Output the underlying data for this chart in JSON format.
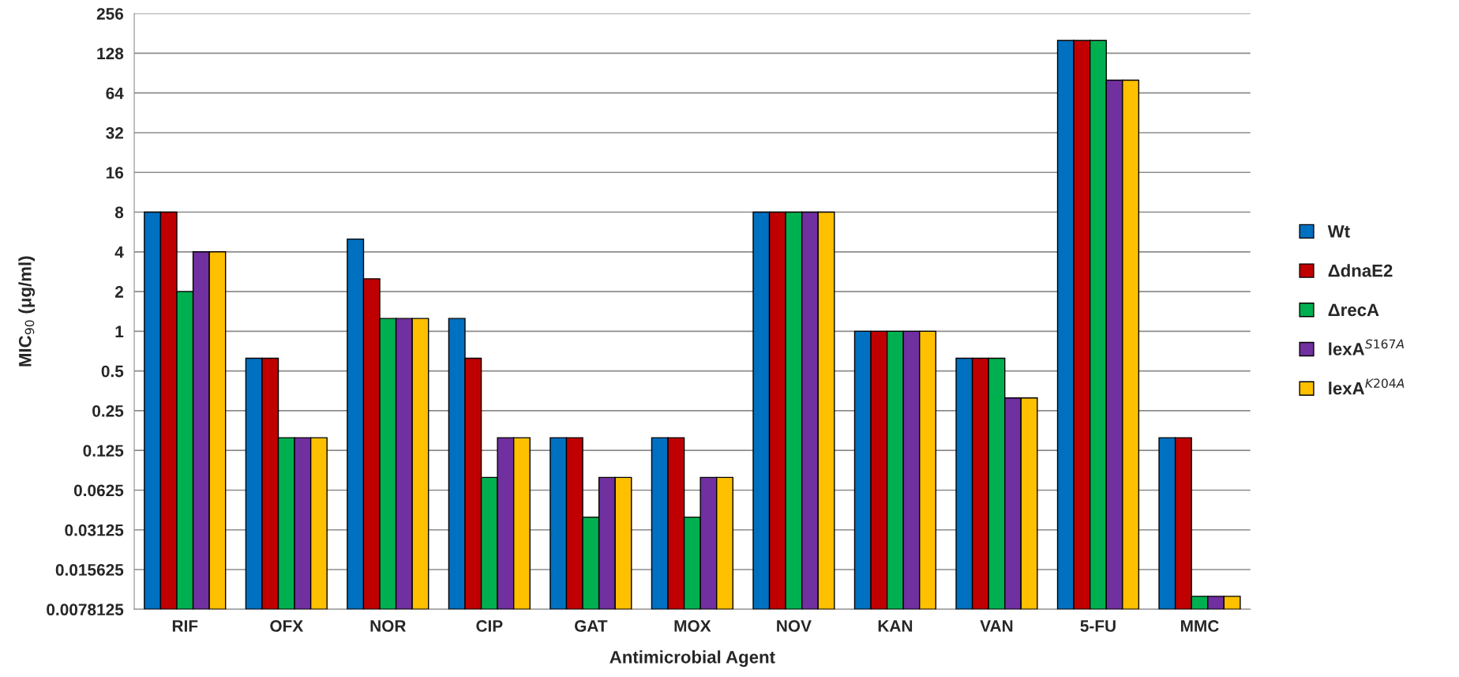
{
  "chart_data": {
    "type": "bar",
    "xlabel": "Antimicrobial Agent",
    "ylabel": "MIC$_{90}$ (μg/ml)",
    "categories": [
      "RIF",
      "OFX",
      "NOR",
      "CIP",
      "GAT",
      "MOX",
      "NOV",
      "KAN",
      "VAN",
      "5-FU",
      "MMC"
    ],
    "series": [
      {
        "name": "Wt",
        "color": "#0070c0",
        "values": [
          8,
          0.625,
          5,
          1.25,
          0.156,
          0.156,
          8,
          1,
          0.625,
          160,
          0.156
        ]
      },
      {
        "name": "ΔdnaE2",
        "color": "#c00000",
        "values": [
          8,
          0.625,
          2.5,
          0.625,
          0.156,
          0.156,
          8,
          1,
          0.625,
          160,
          0.156
        ]
      },
      {
        "name": "ΔrecA",
        "color": "#00b050",
        "values": [
          2,
          0.156,
          1.25,
          0.078,
          0.039,
          0.039,
          8,
          1,
          0.625,
          160,
          0.0098
        ]
      },
      {
        "name": "lexA$^{S167A}$",
        "color": "#7030a0",
        "values": [
          4,
          0.156,
          1.25,
          0.156,
          0.078,
          0.078,
          8,
          1,
          0.3125,
          80,
          0.0098
        ]
      },
      {
        "name": "lexA$^{K204A}$",
        "color": "#ffc000",
        "values": [
          4,
          0.156,
          1.25,
          0.156,
          0.078,
          0.078,
          8,
          1,
          0.3125,
          80,
          0.0098
        ]
      }
    ],
    "log": "y",
    "ylim": [
      0.0078125,
      256
    ],
    "yticks": [
      0.0078125,
      0.015625,
      0.03125,
      0.0625,
      0.125,
      0.25,
      0.5,
      1,
      2,
      4,
      8,
      16,
      32,
      64,
      128,
      256
    ],
    "grid": "y",
    "legend": "right"
  }
}
